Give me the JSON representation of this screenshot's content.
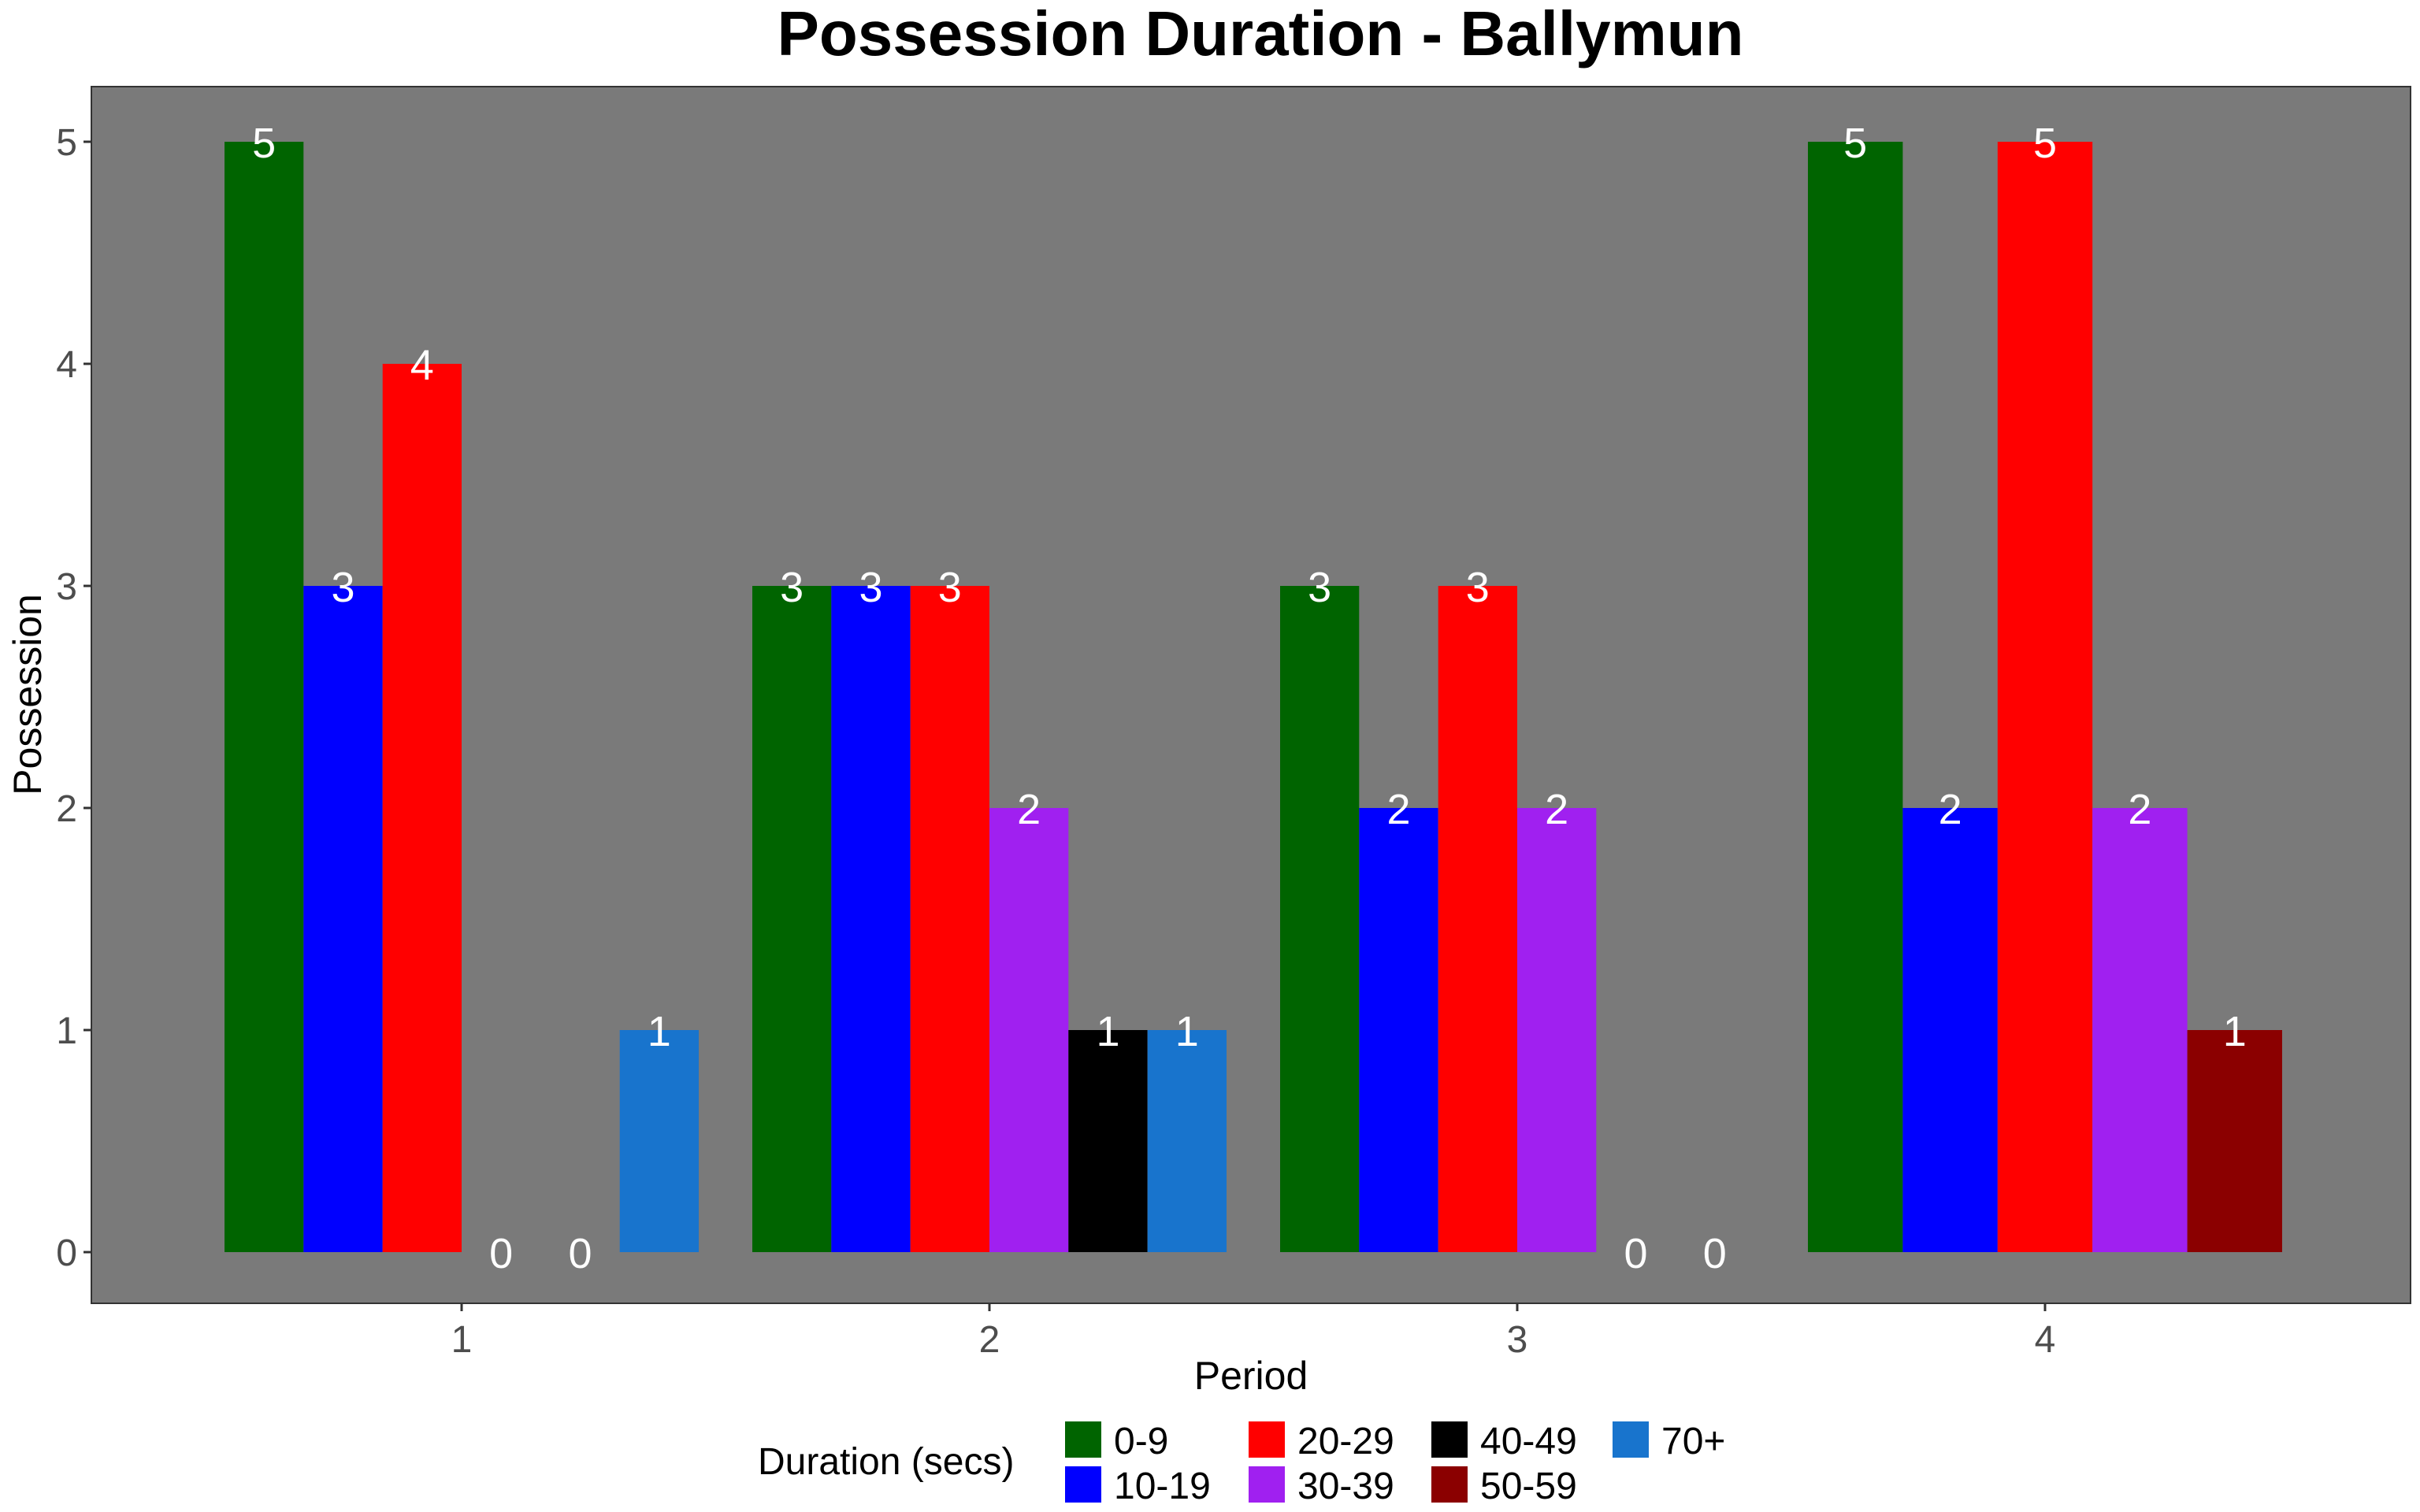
{
  "chart_data": {
    "type": "bar",
    "title": "Possession Duration - Ballymun",
    "xlabel": "Period",
    "ylabel": "Possession",
    "categories": [
      "1",
      "2",
      "3",
      "4"
    ],
    "y_ticks": [
      "0",
      "1",
      "2",
      "3",
      "4",
      "5"
    ],
    "ylim": [
      0,
      5
    ],
    "grid": false,
    "legend": {
      "title": "Duration (secs)",
      "position": "bottom"
    },
    "panel_background": "#7a7a7a",
    "series": [
      {
        "name": "0-9",
        "color": "#006400",
        "values": [
          5,
          3,
          3,
          5
        ]
      },
      {
        "name": "10-19",
        "color": "#0000ff",
        "values": [
          3,
          3,
          2,
          2
        ]
      },
      {
        "name": "20-29",
        "color": "#ff0000",
        "values": [
          4,
          3,
          3,
          5
        ]
      },
      {
        "name": "30-39",
        "color": "#a020f0",
        "values": [
          0,
          2,
          2,
          2
        ]
      },
      {
        "name": "40-49",
        "color": "#000000",
        "values": [
          0,
          1,
          0,
          0
        ]
      },
      {
        "name": "50-59",
        "color": "#8b0000",
        "values": [
          0,
          0,
          0,
          1
        ]
      },
      {
        "name": "70+",
        "color": "#1874cd",
        "values": [
          1,
          1,
          0,
          0
        ]
      }
    ],
    "groups": [
      {
        "period": "1",
        "bars": [
          {
            "series": "0-9",
            "value": 5
          },
          {
            "series": "10-19",
            "value": 3
          },
          {
            "series": "20-29",
            "value": 4
          },
          {
            "series": "30-39",
            "value": 0
          },
          {
            "series": "40-49",
            "value": 0
          },
          {
            "series": "70+",
            "value": 1
          }
        ]
      },
      {
        "period": "2",
        "bars": [
          {
            "series": "0-9",
            "value": 3
          },
          {
            "series": "10-19",
            "value": 3
          },
          {
            "series": "20-29",
            "value": 3
          },
          {
            "series": "30-39",
            "value": 2
          },
          {
            "series": "40-49",
            "value": 1
          },
          {
            "series": "70+",
            "value": 1
          }
        ]
      },
      {
        "period": "3",
        "bars": [
          {
            "series": "0-9",
            "value": 3
          },
          {
            "series": "10-19",
            "value": 2
          },
          {
            "series": "20-29",
            "value": 3
          },
          {
            "series": "30-39",
            "value": 2
          },
          {
            "series": "40-49",
            "value": 0
          },
          {
            "series": "70+",
            "value": 0
          }
        ]
      },
      {
        "period": "4",
        "bars": [
          {
            "series": "0-9",
            "value": 5
          },
          {
            "series": "10-19",
            "value": 2
          },
          {
            "series": "20-29",
            "value": 5
          },
          {
            "series": "30-39",
            "value": 2
          },
          {
            "series": "50-59",
            "value": 1
          }
        ]
      }
    ]
  }
}
